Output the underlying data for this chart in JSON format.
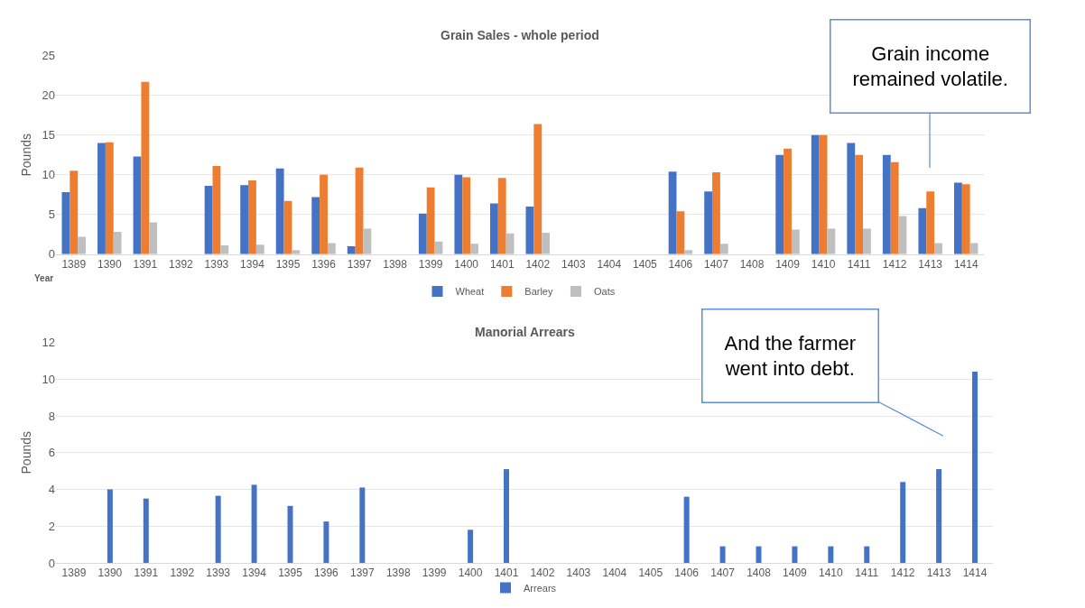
{
  "chart_data": [
    {
      "type": "bar",
      "title": "Grain Sales - whole period",
      "xlabel": "Year",
      "ylabel": "Pounds",
      "categories": [
        "1389",
        "1390",
        "1391",
        "1392",
        "1393",
        "1394",
        "1395",
        "1396",
        "1397",
        "1398",
        "1399",
        "1400",
        "1401",
        "1402",
        "1403",
        "1404",
        "1405",
        "1406",
        "1407",
        "1408",
        "1409",
        "1410",
        "1411",
        "1412",
        "1413",
        "1414"
      ],
      "series": [
        {
          "name": "Wheat",
          "color": "#4472c4",
          "values": [
            7.8,
            14.0,
            12.3,
            null,
            8.6,
            8.7,
            10.8,
            7.2,
            1.0,
            null,
            5.1,
            10.0,
            6.4,
            6.0,
            null,
            null,
            null,
            10.4,
            7.9,
            null,
            12.5,
            15.0,
            14.0,
            12.5,
            5.8,
            9.0
          ]
        },
        {
          "name": "Barley",
          "color": "#ed7d31",
          "values": [
            10.5,
            14.1,
            21.7,
            null,
            11.1,
            9.3,
            6.7,
            10.0,
            10.9,
            null,
            8.4,
            9.7,
            9.6,
            16.4,
            null,
            null,
            null,
            5.4,
            10.3,
            null,
            13.3,
            15.0,
            12.5,
            11.6,
            7.9,
            8.8
          ]
        },
        {
          "name": "Oats",
          "color": "#bfbfbf",
          "values": [
            2.2,
            2.8,
            4.0,
            null,
            1.1,
            1.2,
            0.5,
            1.4,
            3.2,
            null,
            1.6,
            1.3,
            2.6,
            2.7,
            null,
            null,
            null,
            0.5,
            1.3,
            null,
            3.1,
            3.2,
            3.2,
            4.8,
            1.4,
            1.4
          ]
        }
      ],
      "ylim": [
        0,
        25
      ],
      "yticks": [
        0,
        5,
        10,
        15,
        20,
        25
      ],
      "grid": "y",
      "legend": "bottom",
      "annotations": [
        "Grain income remained volatile."
      ]
    },
    {
      "type": "bar",
      "title": "Manorial Arrears",
      "ylabel": "Pounds",
      "categories": [
        "1389",
        "1390",
        "1391",
        "1392",
        "1393",
        "1394",
        "1395",
        "1396",
        "1397",
        "1398",
        "1399",
        "1400",
        "1401",
        "1402",
        "1403",
        "1404",
        "1405",
        "1406",
        "1407",
        "1408",
        "1409",
        "1410",
        "1411",
        "1412",
        "1413",
        "1414"
      ],
      "series": [
        {
          "name": "Arrears",
          "color": "#4472c4",
          "values": [
            null,
            4.0,
            3.5,
            null,
            3.65,
            4.25,
            3.1,
            2.25,
            4.1,
            null,
            null,
            1.8,
            5.1,
            null,
            null,
            null,
            null,
            3.6,
            0.9,
            0.9,
            0.9,
            0.9,
            0.9,
            4.4,
            5.1,
            10.4
          ]
        }
      ],
      "ylim": [
        0,
        12
      ],
      "yticks": [
        0,
        2,
        4,
        6,
        8,
        10,
        12
      ],
      "grid": "y",
      "legend": "bottom",
      "annotations": [
        "And the farmer went into debt."
      ]
    }
  ]
}
